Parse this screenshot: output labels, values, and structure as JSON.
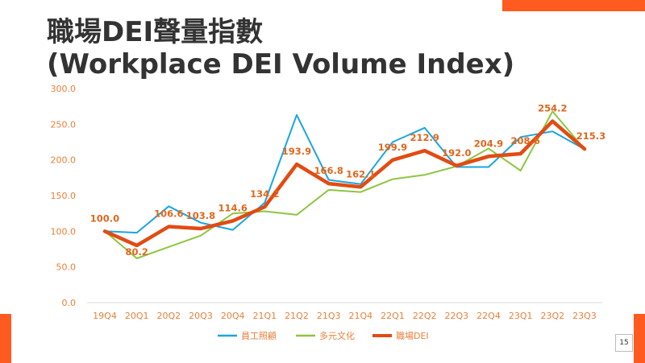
{
  "title_line1": "職場DEI聲量指數",
  "title_line2": "(Workplace DEI Volume Index)",
  "page_number": "15",
  "colors": {
    "accent": "#ff5a1f",
    "series1": "#1aa6e0",
    "series2": "#8dc63f",
    "series3": "#e24b12"
  },
  "chart_data": {
    "type": "line",
    "categories": [
      "19Q4",
      "20Q1",
      "20Q2",
      "20Q3",
      "20Q4",
      "21Q1",
      "21Q2",
      "21Q3",
      "21Q4",
      "22Q1",
      "22Q2",
      "22Q3",
      "22Q4",
      "23Q1",
      "23Q2",
      "23Q3"
    ],
    "yticks": [
      "0.0",
      "50.0",
      "100.0",
      "150.0",
      "200.0",
      "250.0",
      "300.0"
    ],
    "ylim": [
      0,
      300
    ],
    "grid": false,
    "legend_position": "bottom",
    "series": [
      {
        "name": "員工照顧",
        "color": "#1aa6e0",
        "width": 2,
        "values": [
          100,
          98,
          135,
          112,
          102,
          140,
          263,
          172,
          166,
          225,
          245,
          190,
          190,
          232,
          240,
          215
        ]
      },
      {
        "name": "多元文化",
        "color": "#8dc63f",
        "width": 2,
        "values": [
          100,
          62,
          78,
          94,
          125,
          128,
          123,
          158,
          155,
          173,
          179,
          191,
          216,
          185,
          268,
          215
        ]
      },
      {
        "name": "職場DEI",
        "color": "#e24b12",
        "width": 4.5,
        "values": [
          100,
          80.2,
          106.6,
          103.8,
          114.6,
          134.2,
          193.9,
          166.8,
          162.1,
          199.9,
          212.9,
          192.0,
          204.9,
          208.6,
          254.2,
          215.3
        ]
      }
    ],
    "data_labels": [
      "100.0",
      "80.2",
      "106.6",
      "103.8",
      "114.6",
      "134.2",
      "193.9",
      "166.8",
      "162.1",
      "199.9",
      "212.9",
      "192.0",
      "204.9",
      "208.6",
      "254.2",
      "215.3"
    ]
  }
}
